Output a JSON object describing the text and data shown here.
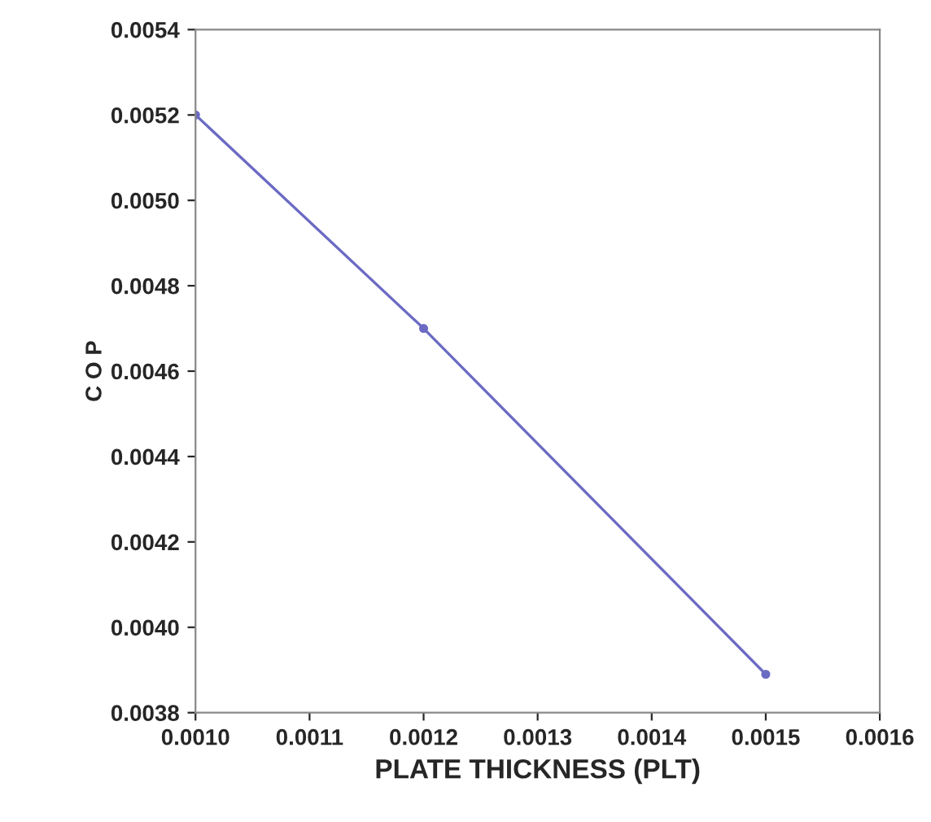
{
  "chart_data": {
    "type": "line",
    "xlabel": "PLATE THICKNESS (PLT)",
    "ylabel": "C O P",
    "x": [
      0.001,
      0.0012,
      0.0015
    ],
    "series": [
      {
        "color": "#6b6bc4",
        "values": [
          0.0052,
          0.0047,
          0.00389
        ]
      }
    ],
    "xlim": [
      0.001,
      0.0016
    ],
    "xticks": [
      {
        "value": 0.001,
        "label": "0.0010"
      },
      {
        "value": 0.0011,
        "label": "0.0011"
      },
      {
        "value": 0.0012,
        "label": "0.0012"
      },
      {
        "value": 0.0013,
        "label": "0.0013"
      },
      {
        "value": 0.0014,
        "label": "0.0014"
      },
      {
        "value": 0.0015,
        "label": "0.0015"
      },
      {
        "value": 0.0016,
        "label": "0.0016"
      }
    ],
    "ylim": [
      0.0038,
      0.0054
    ],
    "yticks": [
      {
        "value": 0.0038,
        "label": "0.0038"
      },
      {
        "value": 0.004,
        "label": "0.0040"
      },
      {
        "value": 0.0042,
        "label": "0.0042"
      },
      {
        "value": 0.0044,
        "label": "0.0044"
      },
      {
        "value": 0.0046,
        "label": "0.0046"
      },
      {
        "value": 0.0048,
        "label": "0.0048"
      },
      {
        "value": 0.005,
        "label": "0.0050"
      },
      {
        "value": 0.0052,
        "label": "0.0052"
      },
      {
        "value": 0.0054,
        "label": "0.0054"
      }
    ],
    "grid": false,
    "marker": "circle",
    "line_style": "solid"
  }
}
